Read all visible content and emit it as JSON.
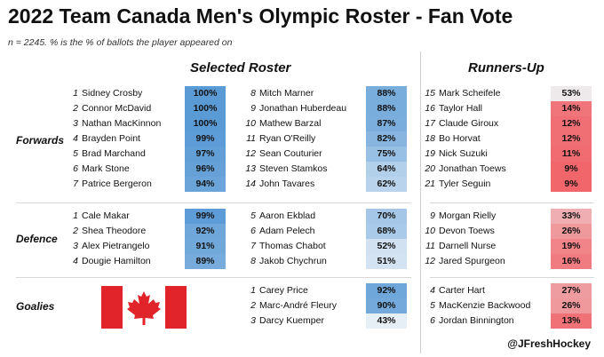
{
  "title": "2022 Team Canada Men's Olympic Roster - Fan Vote",
  "subtitle": "n = 2245. % is the % of ballots the player appeared on",
  "sections": {
    "selected": "Selected Roster",
    "runners_up": "Runners-Up"
  },
  "groups": {
    "forwards": "Forwards",
    "defence": "Defence",
    "goalies": "Goalies"
  },
  "credit": "@JFreshHockey",
  "colors": {
    "selected_high": "#5b9bd5",
    "selected_low": "#eef3f8",
    "runner_high": "#f0666b",
    "runner_low": "#eef0f2"
  },
  "selected": {
    "forwards_a": [
      {
        "num": "1",
        "name": "Sidney Crosby",
        "pct": "100%",
        "v": 100
      },
      {
        "num": "2",
        "name": "Connor McDavid",
        "pct": "100%",
        "v": 100
      },
      {
        "num": "3",
        "name": "Nathan MacKinnon",
        "pct": "100%",
        "v": 100
      },
      {
        "num": "4",
        "name": "Brayden Point",
        "pct": "99%",
        "v": 99
      },
      {
        "num": "5",
        "name": "Brad Marchand",
        "pct": "97%",
        "v": 97
      },
      {
        "num": "6",
        "name": "Mark Stone",
        "pct": "96%",
        "v": 96
      },
      {
        "num": "7",
        "name": "Patrice Bergeron",
        "pct": "94%",
        "v": 94
      }
    ],
    "forwards_b": [
      {
        "num": "8",
        "name": "Mitch Marner",
        "pct": "88%",
        "v": 88
      },
      {
        "num": "9",
        "name": "Jonathan Huberdeau",
        "pct": "88%",
        "v": 88
      },
      {
        "num": "10",
        "name": "Mathew Barzal",
        "pct": "87%",
        "v": 87
      },
      {
        "num": "11",
        "name": "Ryan O'Reilly",
        "pct": "82%",
        "v": 82
      },
      {
        "num": "12",
        "name": "Sean Couturier",
        "pct": "75%",
        "v": 75
      },
      {
        "num": "13",
        "name": "Steven Stamkos",
        "pct": "64%",
        "v": 64
      },
      {
        "num": "14",
        "name": "John Tavares",
        "pct": "62%",
        "v": 62
      }
    ],
    "defence_a": [
      {
        "num": "1",
        "name": "Cale Makar",
        "pct": "99%",
        "v": 99
      },
      {
        "num": "2",
        "name": "Shea Theodore",
        "pct": "92%",
        "v": 92
      },
      {
        "num": "3",
        "name": "Alex Pietrangelo",
        "pct": "91%",
        "v": 91
      },
      {
        "num": "4",
        "name": "Dougie Hamilton",
        "pct": "89%",
        "v": 89
      }
    ],
    "defence_b": [
      {
        "num": "5",
        "name": "Aaron Ekblad",
        "pct": "70%",
        "v": 70
      },
      {
        "num": "6",
        "name": "Adam Pelech",
        "pct": "68%",
        "v": 68
      },
      {
        "num": "7",
        "name": "Thomas Chabot",
        "pct": "52%",
        "v": 52
      },
      {
        "num": "8",
        "name": "Jakob Chychrun",
        "pct": "51%",
        "v": 51
      }
    ],
    "goalies": [
      {
        "num": "1",
        "name": "Carey Price",
        "pct": "92%",
        "v": 92
      },
      {
        "num": "2",
        "name": "Marc-André Fleury",
        "pct": "90%",
        "v": 90
      },
      {
        "num": "3",
        "name": "Darcy Kuemper",
        "pct": "43%",
        "v": 43
      }
    ]
  },
  "runners_up": {
    "forwards": [
      {
        "num": "15",
        "name": "Mark Scheifele",
        "pct": "53%",
        "v": 53
      },
      {
        "num": "16",
        "name": "Taylor Hall",
        "pct": "14%",
        "v": 14
      },
      {
        "num": "17",
        "name": "Claude Giroux",
        "pct": "12%",
        "v": 12
      },
      {
        "num": "18",
        "name": "Bo Horvat",
        "pct": "12%",
        "v": 12
      },
      {
        "num": "19",
        "name": "Nick Suzuki",
        "pct": "11%",
        "v": 11
      },
      {
        "num": "20",
        "name": "Jonathan Toews",
        "pct": "9%",
        "v": 9
      },
      {
        "num": "21",
        "name": "Tyler Seguin",
        "pct": "9%",
        "v": 9
      }
    ],
    "defence": [
      {
        "num": "9",
        "name": "Morgan Rielly",
        "pct": "33%",
        "v": 33
      },
      {
        "num": "10",
        "name": "Devon Toews",
        "pct": "26%",
        "v": 26
      },
      {
        "num": "11",
        "name": "Darnell Nurse",
        "pct": "19%",
        "v": 19
      },
      {
        "num": "12",
        "name": "Jared Spurgeon",
        "pct": "16%",
        "v": 16
      }
    ],
    "goalies": [
      {
        "num": "4",
        "name": "Carter Hart",
        "pct": "27%",
        "v": 27
      },
      {
        "num": "5",
        "name": "MacKenzie Backwood",
        "pct": "26%",
        "v": 26
      },
      {
        "num": "6",
        "name": "Jordan Binnington",
        "pct": "13%",
        "v": 13
      }
    ]
  }
}
